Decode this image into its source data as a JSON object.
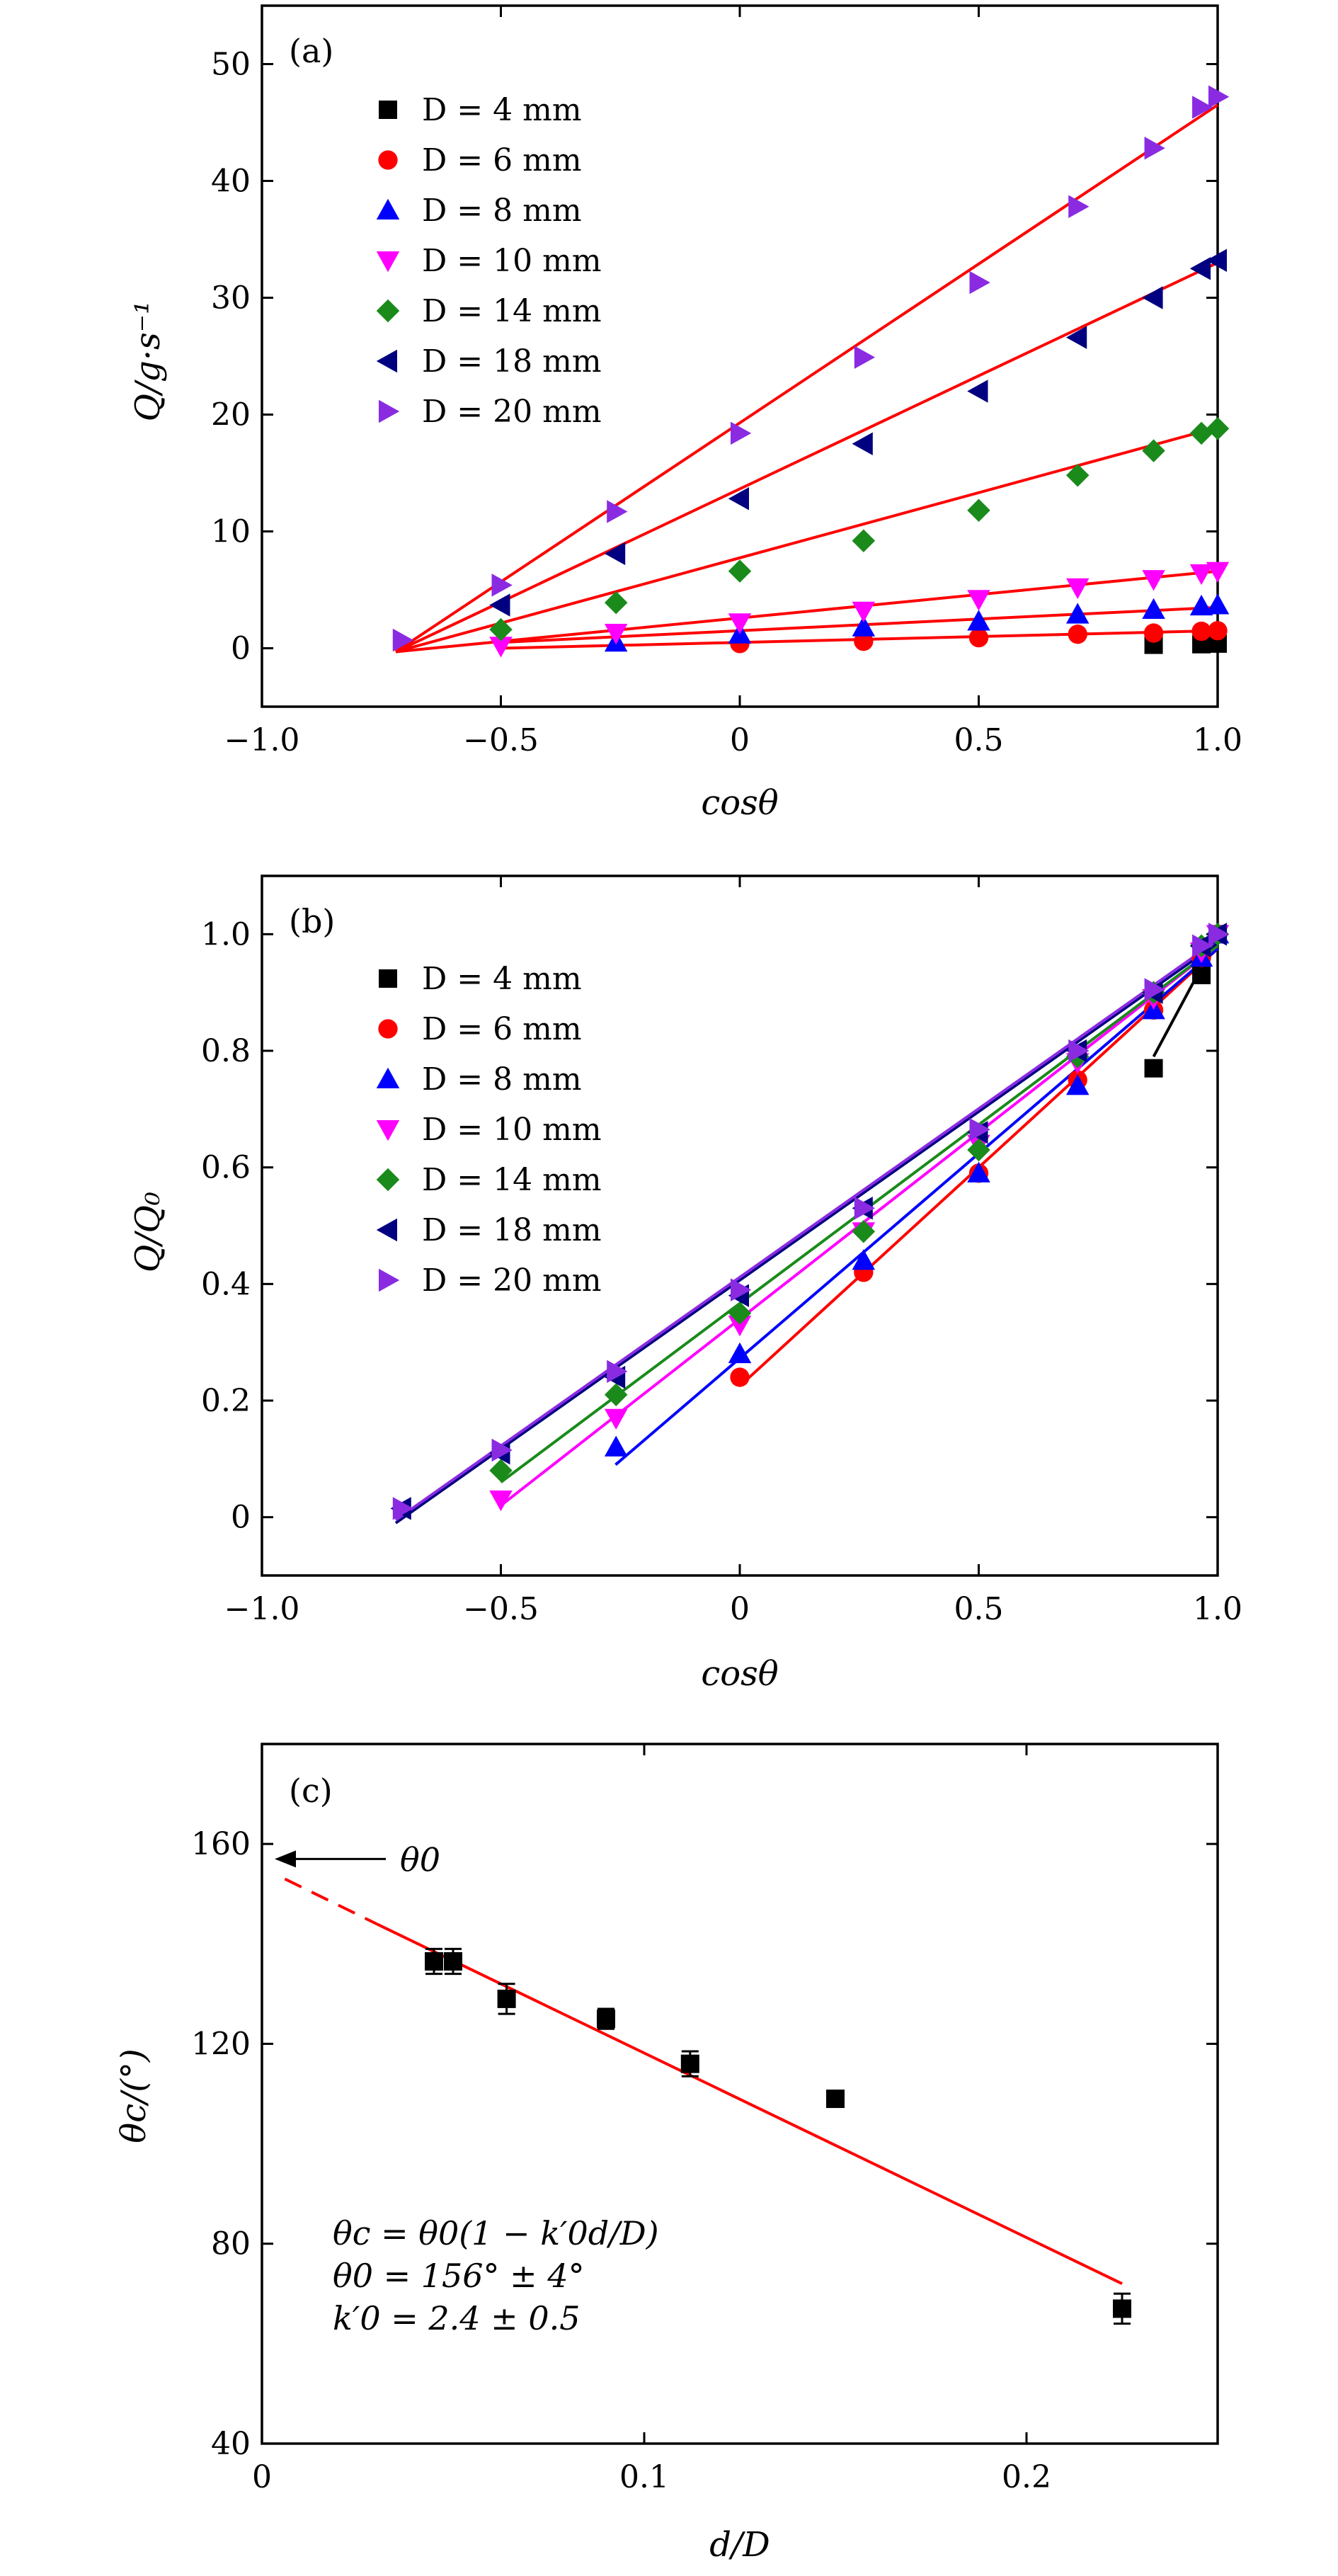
{
  "chart_data": [
    {
      "type": "scatter",
      "panel_label": "(a)",
      "xlabel": "cosθ",
      "ylabel": "Q/g·s⁻¹",
      "xlim": [
        -1.0,
        1.0
      ],
      "ylim": [
        -5,
        55
      ],
      "xticks": [
        -1.0,
        -0.5,
        0,
        0.5,
        1.0
      ],
      "xtick_labels": [
        "−1.0",
        "−0.5",
        "0",
        "0.5",
        "1.0"
      ],
      "yticks": [
        0,
        10,
        20,
        30,
        40,
        50
      ],
      "ytick_labels": [
        "0",
        "10",
        "20",
        "30",
        "40",
        "50"
      ],
      "legend_position": "upper-left",
      "grid": false,
      "series": [
        {
          "name": "D = 4 mm",
          "marker": "square",
          "color": "#000000",
          "x": [
            0.866,
            0.966,
            1.0
          ],
          "y": [
            0.3,
            0.35,
            0.4
          ]
        },
        {
          "name": "D = 6 mm",
          "marker": "circle",
          "color": "#ff0000",
          "x": [
            0,
            0.259,
            0.5,
            0.707,
            0.866,
            0.966,
            1.0
          ],
          "y": [
            0.4,
            0.6,
            0.9,
            1.2,
            1.3,
            1.45,
            1.5
          ]
        },
        {
          "name": "D = 8 mm",
          "marker": "triangle-up",
          "color": "#0000ff",
          "x": [
            -0.259,
            0,
            0.259,
            0.5,
            0.707,
            0.866,
            0.966,
            1.0
          ],
          "y": [
            0.5,
            1.2,
            1.8,
            2.3,
            2.9,
            3.3,
            3.6,
            3.7
          ]
        },
        {
          "name": "D = 10 mm",
          "marker": "triangle-down",
          "color": "#ff00ff",
          "x": [
            -0.5,
            -0.259,
            0,
            0.259,
            0.5,
            0.707,
            0.866,
            0.966,
            1.0
          ],
          "y": [
            0.2,
            1.3,
            2.2,
            3.2,
            4.2,
            5.2,
            5.9,
            6.4,
            6.6
          ]
        },
        {
          "name": "D = 14 mm",
          "marker": "diamond",
          "color": "#1a8a1a",
          "x": [
            -0.5,
            -0.259,
            0,
            0.259,
            0.5,
            0.707,
            0.866,
            0.966,
            1.0
          ],
          "y": [
            1.6,
            3.9,
            6.6,
            9.2,
            11.8,
            14.8,
            16.9,
            18.4,
            18.8
          ]
        },
        {
          "name": "D = 18 mm",
          "marker": "triangle-left",
          "color": "#000080",
          "x": [
            -0.5,
            -0.259,
            0,
            0.259,
            0.5,
            0.707,
            0.866,
            0.966,
            1.0
          ],
          "y": [
            3.7,
            8.1,
            12.8,
            17.5,
            22.0,
            26.6,
            30.0,
            32.5,
            33.2
          ]
        },
        {
          "name": "D = 20 mm",
          "marker": "triangle-right",
          "color": "#8a2be2",
          "x": [
            -0.707,
            -0.5,
            -0.259,
            0,
            0.259,
            0.5,
            0.707,
            0.866,
            0.966,
            1.0
          ],
          "y": [
            0.7,
            5.4,
            11.7,
            18.4,
            24.9,
            31.3,
            37.8,
            42.8,
            46.3,
            47.2
          ]
        }
      ],
      "fit_lines": [
        {
          "color": "#ff0000",
          "x": [
            -0.72,
            1.0
          ],
          "y": [
            -0.3,
            46.5
          ]
        },
        {
          "color": "#ff0000",
          "x": [
            -0.72,
            1.0
          ],
          "y": [
            -0.3,
            33.0
          ]
        },
        {
          "color": "#ff0000",
          "x": [
            -0.72,
            1.0
          ],
          "y": [
            -0.3,
            18.9
          ]
        },
        {
          "color": "#ff0000",
          "x": [
            -0.72,
            1.0
          ],
          "y": [
            -0.3,
            6.6
          ]
        },
        {
          "color": "#ff0000",
          "x": [
            -0.5,
            1.0
          ],
          "y": [
            0.5,
            3.5
          ]
        },
        {
          "color": "#ff0000",
          "x": [
            -0.5,
            1.0
          ],
          "y": [
            0.0,
            1.5
          ]
        }
      ]
    },
    {
      "type": "scatter",
      "panel_label": "(b)",
      "xlabel": "cosθ",
      "ylabel": "Q/Q₀",
      "xlim": [
        -1.0,
        1.0
      ],
      "ylim": [
        -0.1,
        1.1
      ],
      "xticks": [
        -1.0,
        -0.5,
        0,
        0.5,
        1.0
      ],
      "xtick_labels": [
        "−1.0",
        "−0.5",
        "0",
        "0.5",
        "1.0"
      ],
      "yticks": [
        0,
        0.2,
        0.4,
        0.6,
        0.8,
        1.0
      ],
      "ytick_labels": [
        "0",
        "0.2",
        "0.4",
        "0.6",
        "0.8",
        "1.0"
      ],
      "legend_position": "upper-left",
      "grid": false,
      "series": [
        {
          "name": "D = 4 mm",
          "marker": "square",
          "color": "#000000",
          "x": [
            0.866,
            0.966,
            1.0
          ],
          "y": [
            0.77,
            0.93,
            1.0
          ]
        },
        {
          "name": "D = 6 mm",
          "marker": "circle",
          "color": "#ff0000",
          "x": [
            0,
            0.259,
            0.5,
            0.707,
            0.866,
            0.966,
            1.0
          ],
          "y": [
            0.24,
            0.42,
            0.59,
            0.75,
            0.87,
            0.96,
            1.0
          ]
        },
        {
          "name": "D = 8 mm",
          "marker": "triangle-up",
          "color": "#0000ff",
          "x": [
            -0.259,
            0,
            0.259,
            0.5,
            0.707,
            0.866,
            0.966,
            1.0
          ],
          "y": [
            0.12,
            0.28,
            0.44,
            0.59,
            0.74,
            0.87,
            0.96,
            1.0
          ]
        },
        {
          "name": "D = 10 mm",
          "marker": "triangle-down",
          "color": "#ff00ff",
          "x": [
            -0.5,
            -0.259,
            0,
            0.259,
            0.5,
            0.707,
            0.866,
            0.966,
            1.0
          ],
          "y": [
            0.03,
            0.17,
            0.33,
            0.49,
            0.64,
            0.78,
            0.89,
            0.97,
            1.0
          ]
        },
        {
          "name": "D = 14 mm",
          "marker": "diamond",
          "color": "#1a8a1a",
          "x": [
            -0.5,
            -0.259,
            0,
            0.259,
            0.5,
            0.707,
            0.866,
            0.966,
            1.0
          ],
          "y": [
            0.08,
            0.21,
            0.35,
            0.49,
            0.63,
            0.79,
            0.9,
            0.98,
            1.0
          ]
        },
        {
          "name": "D = 18 mm",
          "marker": "triangle-left",
          "color": "#000080",
          "x": [
            -0.707,
            -0.5,
            -0.259,
            0,
            0.259,
            0.5,
            0.707,
            0.866,
            0.966,
            1.0
          ],
          "y": [
            0.015,
            0.11,
            0.24,
            0.38,
            0.53,
            0.66,
            0.8,
            0.9,
            0.98,
            1.0
          ]
        },
        {
          "name": "D = 20 mm",
          "marker": "triangle-right",
          "color": "#8a2be2",
          "x": [
            -0.707,
            -0.5,
            -0.259,
            0,
            0.259,
            0.5,
            0.707,
            0.866,
            0.966,
            1.0
          ],
          "y": [
            0.015,
            0.115,
            0.25,
            0.39,
            0.53,
            0.665,
            0.8,
            0.905,
            0.98,
            1.0
          ]
        }
      ],
      "fit_lines": [
        {
          "color": "#000000",
          "x": [
            0.866,
            1.0
          ],
          "y": [
            0.79,
            0.995
          ]
        },
        {
          "color": "#ff0000",
          "x": [
            0.0,
            1.0
          ],
          "y": [
            0.225,
            0.975
          ]
        },
        {
          "color": "#0000ff",
          "x": [
            -0.26,
            1.0
          ],
          "y": [
            0.09,
            0.975
          ]
        },
        {
          "color": "#ff00ff",
          "x": [
            -0.5,
            1.0
          ],
          "y": [
            0.02,
            0.98
          ]
        },
        {
          "color": "#1a8a1a",
          "x": [
            -0.5,
            1.0
          ],
          "y": [
            0.06,
            0.98
          ]
        },
        {
          "color": "#000080",
          "x": [
            -0.72,
            1.0
          ],
          "y": [
            -0.01,
            0.985
          ]
        },
        {
          "color": "#8a2be2",
          "x": [
            -0.72,
            1.0
          ],
          "y": [
            -0.005,
            0.99
          ]
        }
      ]
    },
    {
      "type": "scatter",
      "panel_label": "(c)",
      "xlabel": "d/D",
      "ylabel": "θc/(°)",
      "xlim": [
        0,
        0.25
      ],
      "ylim": [
        40,
        180
      ],
      "xticks": [
        0,
        0.1,
        0.2
      ],
      "xtick_labels": [
        "0",
        "0.1",
        "0.2"
      ],
      "yticks": [
        40,
        80,
        120,
        160
      ],
      "ytick_labels": [
        "40",
        "80",
        "120",
        "160"
      ],
      "grid": false,
      "series": [
        {
          "name": "",
          "marker": "square",
          "color": "#000000",
          "x": [
            0.045,
            0.05,
            0.064,
            0.09,
            0.112,
            0.15,
            0.225
          ],
          "y": [
            136.5,
            136.5,
            129,
            125,
            116,
            109,
            67
          ],
          "yerr": [
            2.5,
            2.5,
            3,
            2,
            2.5,
            1.5,
            3
          ]
        }
      ],
      "fit_lines": [
        {
          "color": "#ff0000",
          "x": [
            0.006,
            0.03
          ],
          "y": [
            153,
            144
          ],
          "style": "dashed"
        },
        {
          "color": "#ff0000",
          "x": [
            0.03,
            0.225
          ],
          "y": [
            144,
            72
          ],
          "style": "solid"
        }
      ],
      "arrow_label": "θ0",
      "annotations": [
        "θc = θ0(1 − k′0d/D)",
        "θ0 = 156° ± 4°",
        "k′0 = 2.4 ± 0.5"
      ]
    }
  ]
}
